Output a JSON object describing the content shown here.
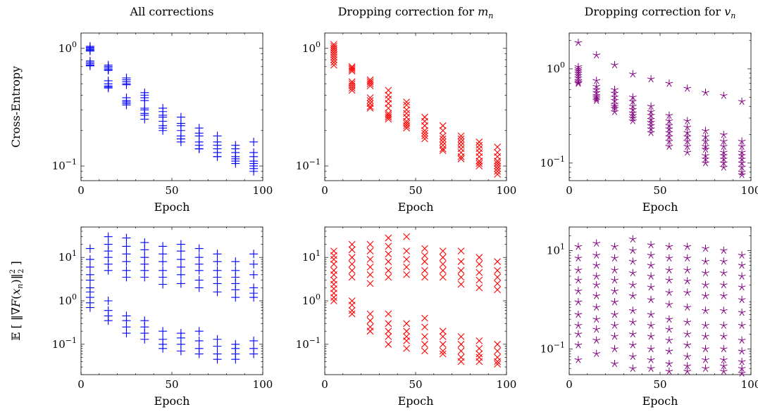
{
  "figure": {
    "column_titles": [
      "All corrections",
      "Dropping correction for m_n",
      "Dropping correction for v_n"
    ],
    "row_ylabels": [
      "Cross-Entropy",
      "E[||∇F(x_n)||²₂]"
    ]
  },
  "chart_data": [
    {
      "type": "scatter",
      "title": "All corrections",
      "xlabel": "Epoch",
      "ylabel": "Cross-Entropy",
      "xlim": [
        0,
        100
      ],
      "xticks": [
        0,
        50,
        100
      ],
      "yscale": "log",
      "ylim": [
        0.075,
        1.35
      ],
      "yticks": [
        {
          "value": 1,
          "label": "10^0"
        },
        {
          "value": 0.1,
          "label": "10^-1"
        }
      ],
      "marker": "+",
      "color": "#0000ff",
      "grid": false,
      "x": [
        5,
        15,
        25,
        35,
        45,
        55,
        65,
        75,
        85,
        95
      ],
      "y_groups": [
        [
          1.04,
          1.02,
          1.0,
          0.98,
          0.96,
          0.95,
          0.78,
          0.76,
          0.74,
          0.72,
          0.71
        ],
        [
          0.72,
          0.7,
          0.68,
          0.66,
          0.65,
          0.53,
          0.5,
          0.48,
          0.47,
          0.46
        ],
        [
          0.56,
          0.54,
          0.52,
          0.5,
          0.49,
          0.38,
          0.36,
          0.35,
          0.34,
          0.33
        ],
        [
          0.42,
          0.4,
          0.38,
          0.36,
          0.31,
          0.3,
          0.28,
          0.27,
          0.25
        ],
        [
          0.31,
          0.29,
          0.27,
          0.26,
          0.24,
          0.22,
          0.21,
          0.2
        ],
        [
          0.26,
          0.23,
          0.22,
          0.2,
          0.18,
          0.17,
          0.16,
          0.17
        ],
        [
          0.21,
          0.19,
          0.18,
          0.16,
          0.15,
          0.14,
          0.14
        ],
        [
          0.18,
          0.16,
          0.15,
          0.14,
          0.13,
          0.12,
          0.12
        ],
        [
          0.15,
          0.14,
          0.13,
          0.12,
          0.115,
          0.11,
          0.105
        ],
        [
          0.16,
          0.13,
          0.12,
          0.11,
          0.105,
          0.1,
          0.095,
          0.09
        ]
      ]
    },
    {
      "type": "scatter",
      "title": "Dropping correction for m_n",
      "xlabel": "Epoch",
      "ylabel": "",
      "xlim": [
        0,
        100
      ],
      "xticks": [
        0,
        50,
        100
      ],
      "yscale": "log",
      "ylim": [
        0.075,
        1.35
      ],
      "yticks": [
        {
          "value": 1,
          "label": "10^0"
        },
        {
          "value": 0.1,
          "label": "10^-1"
        }
      ],
      "marker": "x",
      "color": "#ff0000",
      "grid": false,
      "x": [
        5,
        15,
        25,
        35,
        45,
        55,
        65,
        75,
        85,
        95
      ],
      "y_groups": [
        [
          1.08,
          1.04,
          1.0,
          0.96,
          0.92,
          0.88,
          0.84,
          0.8,
          0.76,
          0.72
        ],
        [
          0.7,
          0.68,
          0.66,
          0.64,
          0.52,
          0.5,
          0.48,
          0.46,
          0.44
        ],
        [
          0.54,
          0.52,
          0.5,
          0.48,
          0.38,
          0.36,
          0.34,
          0.32,
          0.31
        ],
        [
          0.44,
          0.4,
          0.37,
          0.34,
          0.31,
          0.28,
          0.27,
          0.26,
          0.25
        ],
        [
          0.35,
          0.33,
          0.3,
          0.28,
          0.26,
          0.24,
          0.23,
          0.22,
          0.21
        ],
        [
          0.26,
          0.24,
          0.22,
          0.2,
          0.19,
          0.18,
          0.17
        ],
        [
          0.22,
          0.2,
          0.18,
          0.17,
          0.16,
          0.15,
          0.14,
          0.135
        ],
        [
          0.18,
          0.17,
          0.16,
          0.15,
          0.14,
          0.13,
          0.12,
          0.115
        ],
        [
          0.16,
          0.15,
          0.14,
          0.13,
          0.12,
          0.11,
          0.105,
          0.1
        ],
        [
          0.145,
          0.13,
          0.12,
          0.11,
          0.105,
          0.1,
          0.095,
          0.09,
          0.085
        ]
      ]
    },
    {
      "type": "scatter",
      "title": "Dropping correction for v_n",
      "xlabel": "Epoch",
      "ylabel": "",
      "xlim": [
        0,
        100
      ],
      "xticks": [
        0,
        50,
        100
      ],
      "yscale": "log",
      "ylim": [
        0.065,
        2.4
      ],
      "yticks": [
        {
          "value": 1,
          "label": "10^0"
        },
        {
          "value": 0.1,
          "label": "10^-1"
        }
      ],
      "marker": "star",
      "color": "#800080",
      "grid": false,
      "x": [
        5,
        15,
        25,
        35,
        45,
        55,
        65,
        75,
        85,
        95
      ],
      "y_groups": [
        [
          1.9,
          1.05,
          1.0,
          0.95,
          0.9,
          0.85,
          0.8,
          0.75,
          0.72,
          0.7
        ],
        [
          1.4,
          0.75,
          0.65,
          0.6,
          0.56,
          0.52,
          0.5,
          0.48,
          0.46
        ],
        [
          1.1,
          0.6,
          0.55,
          0.5,
          0.46,
          0.42,
          0.4,
          0.38,
          0.35
        ],
        [
          0.88,
          0.5,
          0.45,
          0.4,
          0.37,
          0.34,
          0.32,
          0.3,
          0.28
        ],
        [
          0.78,
          0.4,
          0.35,
          0.32,
          0.29,
          0.27,
          0.25,
          0.23,
          0.21
        ],
        [
          0.7,
          0.32,
          0.28,
          0.25,
          0.23,
          0.21,
          0.19,
          0.17,
          0.15
        ],
        [
          0.62,
          0.28,
          0.24,
          0.21,
          0.19,
          0.17,
          0.15,
          0.13
        ],
        [
          0.56,
          0.22,
          0.19,
          0.17,
          0.15,
          0.14,
          0.12,
          0.11,
          0.1
        ],
        [
          0.52,
          0.2,
          0.17,
          0.15,
          0.13,
          0.12,
          0.11,
          0.1,
          0.09
        ],
        [
          0.45,
          0.17,
          0.15,
          0.13,
          0.12,
          0.11,
          0.1,
          0.09,
          0.08,
          0.075
        ]
      ]
    },
    {
      "type": "scatter",
      "title": "",
      "xlabel": "Epoch",
      "ylabel": "E[||∇F(x_n)||²₂]",
      "xlim": [
        0,
        100
      ],
      "xticks": [
        0,
        50,
        100
      ],
      "yscale": "log",
      "ylim": [
        0.02,
        50
      ],
      "yticks": [
        {
          "value": 10,
          "label": "10^1"
        },
        {
          "value": 1,
          "label": "10^0"
        },
        {
          "value": 0.1,
          "label": "10^-1"
        }
      ],
      "marker": "+",
      "color": "#0000ff",
      "grid": false,
      "x": [
        5,
        15,
        25,
        35,
        45,
        55,
        65,
        75,
        85,
        95
      ],
      "y_groups": [
        [
          16,
          9,
          6,
          4,
          3,
          2,
          1.6,
          1.2,
          0.9,
          0.7
        ],
        [
          30,
          20,
          14,
          10,
          7,
          5,
          1,
          0.6,
          0.45,
          0.35
        ],
        [
          28,
          18,
          12,
          8,
          5,
          3.5,
          0.45,
          0.35,
          0.25,
          0.18
        ],
        [
          22,
          15,
          10,
          7,
          5,
          3.5,
          0.35,
          0.25,
          0.18,
          0.13
        ],
        [
          18,
          12,
          8,
          5,
          3.5,
          2.4,
          0.2,
          0.13,
          0.1,
          0.08
        ],
        [
          20,
          14,
          9,
          6,
          4,
          2.5,
          0.18,
          0.14,
          0.1,
          0.07
        ],
        [
          16,
          10,
          7,
          5,
          3,
          2,
          0.2,
          0.12,
          0.08,
          0.06
        ],
        [
          12,
          8,
          5,
          3.5,
          2.5,
          1.6,
          0.13,
          0.09,
          0.06,
          0.045
        ],
        [
          8,
          5,
          3.5,
          2.5,
          1.8,
          1.2,
          0.1,
          0.08,
          0.06,
          0.045
        ],
        [
          12,
          7,
          4,
          2,
          1.5,
          1.2,
          0.12,
          0.08,
          0.06
        ]
      ]
    },
    {
      "type": "scatter",
      "title": "",
      "xlabel": "Epoch",
      "ylabel": "",
      "xlim": [
        0,
        100
      ],
      "xticks": [
        0,
        50,
        100
      ],
      "yscale": "log",
      "ylim": [
        0.02,
        50
      ],
      "yticks": [
        {
          "value": 10,
          "label": "10^1"
        },
        {
          "value": 1,
          "label": "10^0"
        },
        {
          "value": 0.1,
          "label": "10^-1"
        }
      ],
      "marker": "x",
      "color": "#ff0000",
      "grid": false,
      "x": [
        5,
        15,
        25,
        35,
        45,
        55,
        65,
        75,
        85,
        95
      ],
      "y_groups": [
        [
          14,
          11,
          9,
          7,
          5,
          4,
          3,
          2.4,
          1.9,
          1.5,
          1.2,
          1
        ],
        [
          20,
          15,
          10,
          7,
          5,
          3.5,
          1,
          0.8,
          0.6,
          0.5
        ],
        [
          20,
          14,
          9,
          6,
          4,
          2.5,
          0.5,
          0.35,
          0.25,
          0.2
        ],
        [
          28,
          18,
          12,
          8,
          5,
          3.5,
          0.5,
          0.3,
          0.2,
          0.15,
          0.1
        ],
        [
          30,
          14,
          9,
          6,
          4,
          0.3,
          0.2,
          0.15,
          0.12,
          0.08
        ],
        [
          16,
          11,
          8,
          5,
          3.5,
          0.4,
          0.25,
          0.15,
          0.1,
          0.07
        ],
        [
          14,
          10,
          7,
          5,
          3.5,
          0.2,
          0.15,
          0.1,
          0.07,
          0.06
        ],
        [
          14,
          8,
          5,
          3.5,
          2.4,
          0.15,
          0.1,
          0.07,
          0.05,
          0.04
        ],
        [
          10,
          7,
          4.5,
          3,
          2,
          0.12,
          0.08,
          0.06,
          0.05,
          0.04
        ],
        [
          8,
          5,
          3.5,
          2.5,
          1.8,
          0.1,
          0.07,
          0.05,
          0.04,
          0.035
        ]
      ]
    },
    {
      "type": "scatter",
      "title": "",
      "xlabel": "Epoch",
      "ylabel": "",
      "xlim": [
        0,
        100
      ],
      "xticks": [
        0,
        50,
        100
      ],
      "yscale": "log",
      "ylim": [
        0.03,
        30
      ],
      "yticks": [
        {
          "value": 10,
          "label": "10^1"
        },
        {
          "value": 0.1,
          "label": "10^-1"
        }
      ],
      "marker": "star",
      "color": "#800080",
      "grid": false,
      "x": [
        5,
        15,
        25,
        35,
        45,
        55,
        65,
        75,
        85,
        95
      ],
      "y_groups": [
        [
          12,
          7,
          4,
          2.5,
          1.5,
          0.9,
          0.5,
          0.3,
          0.2,
          0.12,
          0.06
        ],
        [
          14,
          8,
          5,
          3,
          2,
          1.2,
          0.7,
          0.4,
          0.25,
          0.15,
          0.08
        ],
        [
          12,
          7,
          4,
          2.5,
          1.5,
          0.9,
          0.5,
          0.3,
          0.18,
          0.1,
          0.05
        ],
        [
          17,
          10,
          6,
          3.5,
          2,
          1.2,
          0.6,
          0.35,
          0.2,
          0.12,
          0.07,
          0.04
        ],
        [
          13,
          8,
          5,
          3,
          1.8,
          1,
          0.5,
          0.3,
          0.18,
          0.1,
          0.06,
          0.04
        ],
        [
          12,
          7,
          4,
          2.5,
          1.4,
          0.8,
          0.4,
          0.25,
          0.15,
          0.09,
          0.05,
          0.035
        ],
        [
          12,
          7,
          4,
          2.4,
          1.4,
          0.7,
          0.35,
          0.2,
          0.12,
          0.07,
          0.045,
          0.035
        ],
        [
          11,
          6,
          3.5,
          2,
          1.2,
          0.6,
          0.3,
          0.18,
          0.1,
          0.06,
          0.04
        ],
        [
          10,
          6,
          3.5,
          2,
          1.2,
          0.6,
          0.3,
          0.18,
          0.1,
          0.06,
          0.045,
          0.035
        ],
        [
          8,
          5,
          3,
          1.8,
          1,
          0.55,
          0.3,
          0.15,
          0.09,
          0.055,
          0.04,
          0.032
        ]
      ]
    }
  ]
}
